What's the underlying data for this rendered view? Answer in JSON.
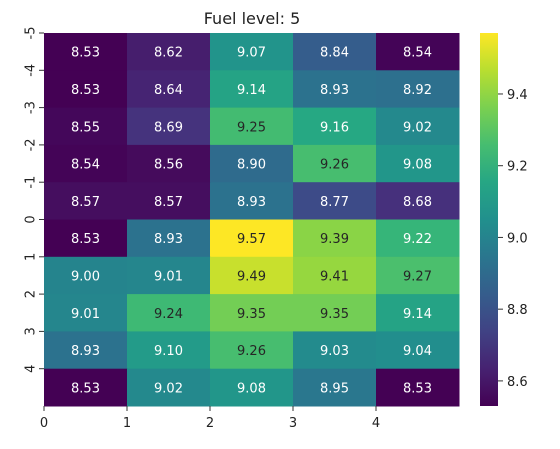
{
  "chart_data": {
    "type": "heatmap",
    "title": "Fuel level: 5",
    "xlabel": "",
    "ylabel": "",
    "x_ticks": [
      "0",
      "1",
      "2",
      "3",
      "4"
    ],
    "y_ticks": [
      "-5",
      "-4",
      "-3",
      "-2",
      "-1",
      "0",
      "1",
      "2",
      "3",
      "4"
    ],
    "values": [
      [
        8.53,
        8.62,
        9.07,
        8.84,
        8.54
      ],
      [
        8.53,
        8.64,
        9.14,
        8.93,
        8.92
      ],
      [
        8.55,
        8.69,
        9.25,
        9.16,
        9.02
      ],
      [
        8.54,
        8.56,
        8.9,
        9.26,
        9.08
      ],
      [
        8.57,
        8.57,
        8.93,
        8.77,
        8.68
      ],
      [
        8.53,
        8.93,
        9.57,
        9.39,
        9.22
      ],
      [
        9.0,
        9.01,
        9.49,
        9.41,
        9.27
      ],
      [
        9.01,
        9.24,
        9.35,
        9.35,
        9.14
      ],
      [
        8.93,
        9.1,
        9.26,
        9.03,
        9.04
      ],
      [
        8.53,
        9.02,
        9.08,
        8.95,
        8.53
      ]
    ],
    "cell_labels": [
      [
        "8.53",
        "8.62",
        "9.07",
        "8.84",
        "8.54"
      ],
      [
        "8.53",
        "8.64",
        "9.14",
        "8.93",
        "8.92"
      ],
      [
        "8.55",
        "8.69",
        "9.25",
        "9.16",
        "9.02"
      ],
      [
        "8.54",
        "8.56",
        "8.90",
        "9.26",
        "9.08"
      ],
      [
        "8.57",
        "8.57",
        "8.93",
        "8.77",
        "8.68"
      ],
      [
        "8.53",
        "8.93",
        "9.57",
        "9.39",
        "9.22"
      ],
      [
        "9.00",
        "9.01",
        "9.49",
        "9.41",
        "9.27"
      ],
      [
        "9.01",
        "9.24",
        "9.35",
        "9.35",
        "9.14"
      ],
      [
        "8.93",
        "9.10",
        "9.26",
        "9.03",
        "9.04"
      ],
      [
        "8.53",
        "9.02",
        "9.08",
        "8.95",
        "8.53"
      ]
    ],
    "colormap": "viridis",
    "vmin": 8.53,
    "vmax": 9.57,
    "colorbar_ticks": [
      "8.6",
      "8.8",
      "9.0",
      "9.2",
      "9.4"
    ],
    "colorbar_tick_values": [
      8.6,
      8.8,
      9.0,
      9.2,
      9.4
    ],
    "grid": false,
    "colorbar_position": "right"
  }
}
